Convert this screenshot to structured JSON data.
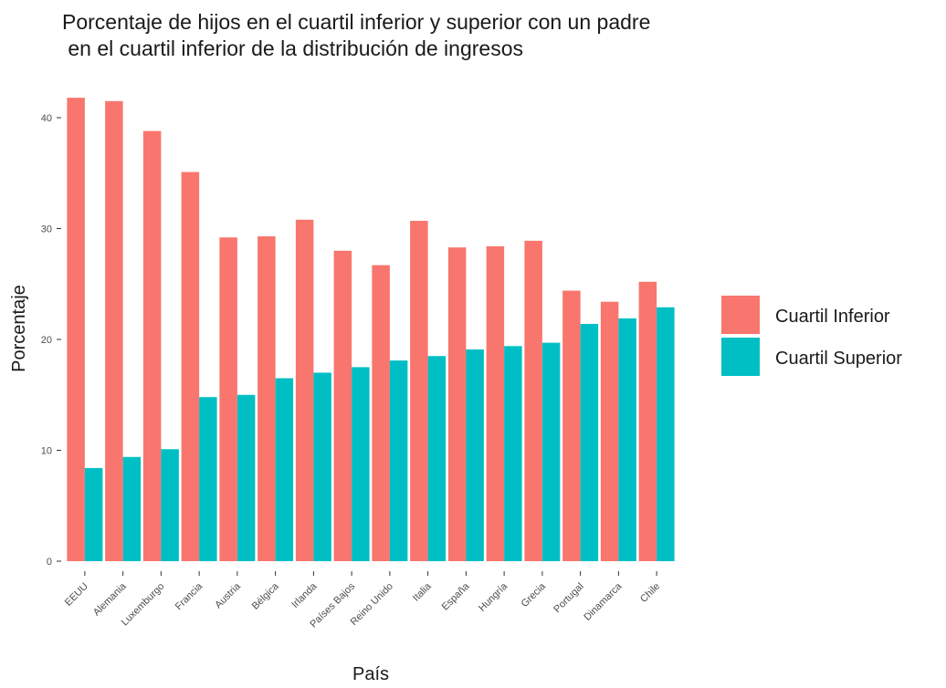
{
  "chart_data": {
    "type": "bar",
    "title_line1": "Porcentaje de hijos en el cuartil inferior y superior con un padre",
    "title_line2": " en el cuartil inferior de la distribución de ingresos",
    "xlabel": "País",
    "ylabel": "Porcentaje",
    "ylim": [
      0,
      42
    ],
    "yticks": [
      0,
      10,
      20,
      30,
      40
    ],
    "grid": false,
    "legend_position": "right",
    "categories": [
      "EEUU",
      "Alemania",
      "Luxemburgo",
      "Francia",
      "Austria",
      "Bélgica",
      "Irlanda",
      "Países Bajos",
      "Reino Unido",
      "Italia",
      "España",
      "Hungría",
      "Grecia",
      "Portugal",
      "Dinamarca",
      "Chile"
    ],
    "series": [
      {
        "name": "Cuartil Inferior",
        "color": "#F8766D",
        "values": [
          41.8,
          41.5,
          38.8,
          35.1,
          29.2,
          29.3,
          30.8,
          28.0,
          26.7,
          30.7,
          28.3,
          28.4,
          28.9,
          24.4,
          23.4,
          25.2
        ]
      },
      {
        "name": "Cuartil Superior",
        "color": "#00BFC4",
        "values": [
          8.4,
          9.4,
          10.1,
          14.8,
          15.0,
          16.5,
          17.0,
          17.5,
          18.1,
          18.5,
          19.1,
          19.4,
          19.7,
          21.4,
          21.9,
          22.9
        ]
      }
    ]
  }
}
